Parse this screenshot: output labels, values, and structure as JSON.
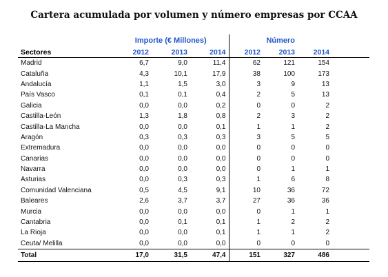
{
  "title": "Cartera acumulada por volumen y número empresas por CCAA",
  "group_headers": {
    "importe": "Importe (€ Millones)",
    "numero": "Número"
  },
  "columns": {
    "sectores": "Sectores",
    "years": [
      "2012",
      "2013",
      "2014",
      "2012",
      "2013",
      "2014"
    ]
  },
  "rows": [
    {
      "name": "Madrid",
      "values": [
        "6,7",
        "9,0",
        "11,4",
        "62",
        "121",
        "154"
      ]
    },
    {
      "name": "Cataluña",
      "values": [
        "4,3",
        "10,1",
        "17,9",
        "38",
        "100",
        "173"
      ]
    },
    {
      "name": "Andalucía",
      "values": [
        "1,1",
        "1,5",
        "3,0",
        "3",
        "9",
        "13"
      ]
    },
    {
      "name": "País Vasco",
      "values": [
        "0,1",
        "0,1",
        "0,4",
        "2",
        "5",
        "13"
      ]
    },
    {
      "name": "Galicia",
      "values": [
        "0,0",
        "0,0",
        "0,2",
        "0",
        "0",
        "2"
      ]
    },
    {
      "name": "Castilla-León",
      "values": [
        "1,3",
        "1,8",
        "0,8",
        "2",
        "3",
        "2"
      ]
    },
    {
      "name": "Castilla-La Mancha",
      "values": [
        "0,0",
        "0,0",
        "0,1",
        "1",
        "1",
        "2"
      ]
    },
    {
      "name": "Aragón",
      "values": [
        "0,3",
        "0,3",
        "0,3",
        "3",
        "5",
        "5"
      ]
    },
    {
      "name": "Extremadura",
      "values": [
        "0,0",
        "0,0",
        "0,0",
        "0",
        "0",
        "0"
      ]
    },
    {
      "name": "Canarias",
      "values": [
        "0,0",
        "0,0",
        "0,0",
        "0",
        "0",
        "0"
      ]
    },
    {
      "name": "Navarra",
      "values": [
        "0,0",
        "0,0",
        "0,0",
        "0",
        "1",
        "1"
      ]
    },
    {
      "name": "Asturias",
      "values": [
        "0,0",
        "0,3",
        "0,3",
        "1",
        "6",
        "8"
      ]
    },
    {
      "name": "Comunidad Valenciana",
      "values": [
        "0,5",
        "4,5",
        "9,1",
        "10",
        "36",
        "72"
      ]
    },
    {
      "name": "Baleares",
      "values": [
        "2,6",
        "3,7",
        "3,7",
        "27",
        "36",
        "36"
      ]
    },
    {
      "name": "Murcia",
      "values": [
        "0,0",
        "0,0",
        "0,0",
        "0",
        "1",
        "1"
      ]
    },
    {
      "name": "Cantabria",
      "values": [
        "0,0",
        "0,1",
        "0,1",
        "1",
        "2",
        "2"
      ]
    },
    {
      "name": "La Rioja",
      "values": [
        "0,0",
        "0,0",
        "0,1",
        "1",
        "1",
        "2"
      ]
    },
    {
      "name": "Ceuta/ Melilla",
      "values": [
        "0,0",
        "0,0",
        "0,0",
        "0",
        "0",
        "0"
      ]
    }
  ],
  "total": {
    "name": "Total",
    "values": [
      "17,0",
      "31,5",
      "47,4",
      "151",
      "327",
      "486"
    ]
  },
  "colors": {
    "accent": "#1f56c9",
    "text": "#111111"
  }
}
